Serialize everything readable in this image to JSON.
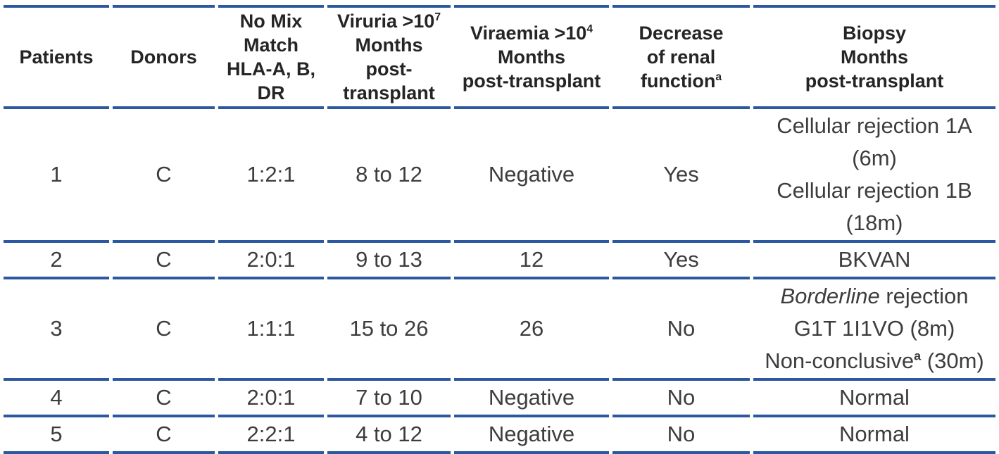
{
  "table": {
    "line_color": "#2b58a0",
    "header_text_color": "#262424",
    "body_text_color": "#3d3d3d",
    "columns": [
      {
        "id": "patients",
        "label": [
          {
            "t": "Patients"
          }
        ]
      },
      {
        "id": "donors",
        "label": [
          {
            "t": "Donors"
          }
        ]
      },
      {
        "id": "mismatch",
        "label": [
          {
            "t": "No Mix\nMatch\nHLA-A, B,\nDR"
          }
        ]
      },
      {
        "id": "viruria",
        "label": [
          {
            "t": "Viruria >10"
          },
          {
            "sup": "7"
          },
          {
            "t": "\nMonths\npost-\ntransplant"
          }
        ]
      },
      {
        "id": "viraemia",
        "label": [
          {
            "t": "Viraemia >10"
          },
          {
            "sup": "4"
          },
          {
            "t": "\nMonths\npost-transplant"
          }
        ]
      },
      {
        "id": "renal-function",
        "label": [
          {
            "t": "Decrease\nof renal\nfunction"
          },
          {
            "sup": "a"
          }
        ]
      },
      {
        "id": "biopsy",
        "label": [
          {
            "t": "Biopsy\nMonths\npost-transplant"
          }
        ]
      }
    ],
    "rows": [
      {
        "cells": [
          [
            {
              "t": "1"
            }
          ],
          [
            {
              "t": "C"
            }
          ],
          [
            {
              "t": "1:2:1"
            }
          ],
          [
            {
              "t": "8 to 12"
            }
          ],
          [
            {
              "t": "Negative"
            }
          ],
          [
            {
              "t": "Yes"
            }
          ],
          [
            {
              "t": "Cellular rejection 1A\n(6m)\nCellular rejection 1B\n(18m)"
            }
          ]
        ]
      },
      {
        "cells": [
          [
            {
              "t": "2"
            }
          ],
          [
            {
              "t": "C"
            }
          ],
          [
            {
              "t": "2:0:1"
            }
          ],
          [
            {
              "t": "9 to 13"
            }
          ],
          [
            {
              "t": "12"
            }
          ],
          [
            {
              "t": "Yes"
            }
          ],
          [
            {
              "t": "BKVAN"
            }
          ]
        ]
      },
      {
        "cells": [
          [
            {
              "t": "3"
            }
          ],
          [
            {
              "t": "C"
            }
          ],
          [
            {
              "t": "1:1:1"
            }
          ],
          [
            {
              "t": "15 to 26"
            }
          ],
          [
            {
              "t": "26"
            }
          ],
          [
            {
              "t": "No"
            }
          ],
          [
            {
              "i": "Borderline"
            },
            {
              "t": " rejection\nG1T 1I1VO (8m)\nNon-conclusive"
            },
            {
              "sup": "a"
            },
            {
              "t": " (30m)"
            }
          ]
        ]
      },
      {
        "cells": [
          [
            {
              "t": "4"
            }
          ],
          [
            {
              "t": "C"
            }
          ],
          [
            {
              "t": "2:0:1"
            }
          ],
          [
            {
              "t": "7 to 10"
            }
          ],
          [
            {
              "t": "Negative"
            }
          ],
          [
            {
              "t": "No"
            }
          ],
          [
            {
              "t": "Normal"
            }
          ]
        ]
      },
      {
        "cells": [
          [
            {
              "t": "5"
            }
          ],
          [
            {
              "t": "C"
            }
          ],
          [
            {
              "t": "2:2:1"
            }
          ],
          [
            {
              "t": "4 to 12"
            }
          ],
          [
            {
              "t": "Negative"
            }
          ],
          [
            {
              "t": "No"
            }
          ],
          [
            {
              "t": "Normal"
            }
          ]
        ]
      }
    ]
  }
}
